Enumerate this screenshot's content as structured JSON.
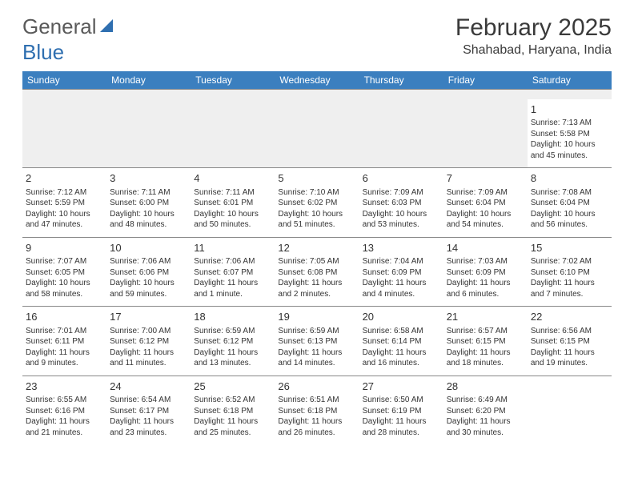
{
  "brand": {
    "part1": "General",
    "part2": "Blue"
  },
  "title": "February 2025",
  "location": "Shahabad, Haryana, India",
  "header_bg": "#3b7fbf",
  "header_fg": "#ffffff",
  "blank_bg": "#efefef",
  "border_color": "#888888",
  "text_color": "#333333",
  "logo_blue": "#2f6fb0",
  "days": [
    "Sunday",
    "Monday",
    "Tuesday",
    "Wednesday",
    "Thursday",
    "Friday",
    "Saturday"
  ],
  "weeks": [
    [
      null,
      null,
      null,
      null,
      null,
      null,
      {
        "n": "1",
        "sr": "7:13 AM",
        "ss": "5:58 PM",
        "dl": "10 hours and 45 minutes."
      }
    ],
    [
      {
        "n": "2",
        "sr": "7:12 AM",
        "ss": "5:59 PM",
        "dl": "10 hours and 47 minutes."
      },
      {
        "n": "3",
        "sr": "7:11 AM",
        "ss": "6:00 PM",
        "dl": "10 hours and 48 minutes."
      },
      {
        "n": "4",
        "sr": "7:11 AM",
        "ss": "6:01 PM",
        "dl": "10 hours and 50 minutes."
      },
      {
        "n": "5",
        "sr": "7:10 AM",
        "ss": "6:02 PM",
        "dl": "10 hours and 51 minutes."
      },
      {
        "n": "6",
        "sr": "7:09 AM",
        "ss": "6:03 PM",
        "dl": "10 hours and 53 minutes."
      },
      {
        "n": "7",
        "sr": "7:09 AM",
        "ss": "6:04 PM",
        "dl": "10 hours and 54 minutes."
      },
      {
        "n": "8",
        "sr": "7:08 AM",
        "ss": "6:04 PM",
        "dl": "10 hours and 56 minutes."
      }
    ],
    [
      {
        "n": "9",
        "sr": "7:07 AM",
        "ss": "6:05 PM",
        "dl": "10 hours and 58 minutes."
      },
      {
        "n": "10",
        "sr": "7:06 AM",
        "ss": "6:06 PM",
        "dl": "10 hours and 59 minutes."
      },
      {
        "n": "11",
        "sr": "7:06 AM",
        "ss": "6:07 PM",
        "dl": "11 hours and 1 minute."
      },
      {
        "n": "12",
        "sr": "7:05 AM",
        "ss": "6:08 PM",
        "dl": "11 hours and 2 minutes."
      },
      {
        "n": "13",
        "sr": "7:04 AM",
        "ss": "6:09 PM",
        "dl": "11 hours and 4 minutes."
      },
      {
        "n": "14",
        "sr": "7:03 AM",
        "ss": "6:09 PM",
        "dl": "11 hours and 6 minutes."
      },
      {
        "n": "15",
        "sr": "7:02 AM",
        "ss": "6:10 PM",
        "dl": "11 hours and 7 minutes."
      }
    ],
    [
      {
        "n": "16",
        "sr": "7:01 AM",
        "ss": "6:11 PM",
        "dl": "11 hours and 9 minutes."
      },
      {
        "n": "17",
        "sr": "7:00 AM",
        "ss": "6:12 PM",
        "dl": "11 hours and 11 minutes."
      },
      {
        "n": "18",
        "sr": "6:59 AM",
        "ss": "6:12 PM",
        "dl": "11 hours and 13 minutes."
      },
      {
        "n": "19",
        "sr": "6:59 AM",
        "ss": "6:13 PM",
        "dl": "11 hours and 14 minutes."
      },
      {
        "n": "20",
        "sr": "6:58 AM",
        "ss": "6:14 PM",
        "dl": "11 hours and 16 minutes."
      },
      {
        "n": "21",
        "sr": "6:57 AM",
        "ss": "6:15 PM",
        "dl": "11 hours and 18 minutes."
      },
      {
        "n": "22",
        "sr": "6:56 AM",
        "ss": "6:15 PM",
        "dl": "11 hours and 19 minutes."
      }
    ],
    [
      {
        "n": "23",
        "sr": "6:55 AM",
        "ss": "6:16 PM",
        "dl": "11 hours and 21 minutes."
      },
      {
        "n": "24",
        "sr": "6:54 AM",
        "ss": "6:17 PM",
        "dl": "11 hours and 23 minutes."
      },
      {
        "n": "25",
        "sr": "6:52 AM",
        "ss": "6:18 PM",
        "dl": "11 hours and 25 minutes."
      },
      {
        "n": "26",
        "sr": "6:51 AM",
        "ss": "6:18 PM",
        "dl": "11 hours and 26 minutes."
      },
      {
        "n": "27",
        "sr": "6:50 AM",
        "ss": "6:19 PM",
        "dl": "11 hours and 28 minutes."
      },
      {
        "n": "28",
        "sr": "6:49 AM",
        "ss": "6:20 PM",
        "dl": "11 hours and 30 minutes."
      },
      null
    ]
  ],
  "labels": {
    "sunrise": "Sunrise: ",
    "sunset": "Sunset: ",
    "daylight": "Daylight: "
  }
}
